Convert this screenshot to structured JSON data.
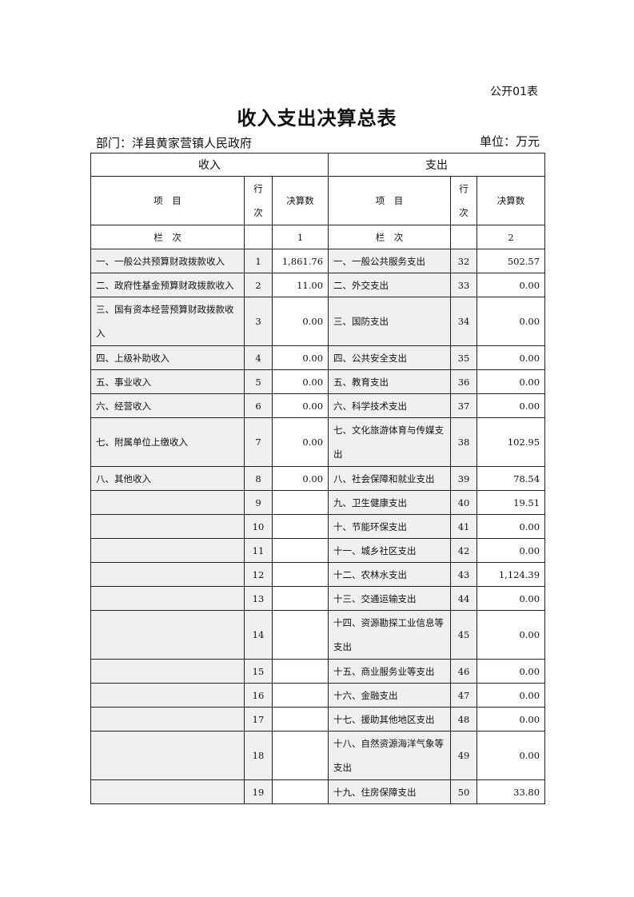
{
  "form_code": "公开01表",
  "title": "收入支出决算总表",
  "department": "部门：洋县黄家营镇人民政府",
  "unit": "单位：万元",
  "sections": {
    "income": "收入",
    "expense": "支出"
  },
  "headers": {
    "item": "项　目",
    "line": "行次",
    "amount": "决算数",
    "column_label": "栏　次",
    "income_col": "1",
    "expense_col": "2"
  },
  "rows": [
    {
      "in_item": "一、一般公共预算财政拨款收入",
      "in_line": "1",
      "in_val": "1,861.76",
      "ex_item": "一、一般公共服务支出",
      "ex_line": "32",
      "ex_val": "502.57"
    },
    {
      "in_item": "二、政府性基金预算财政拨款收入",
      "in_line": "2",
      "in_val": "11.00",
      "ex_item": "二、外交支出",
      "ex_line": "33",
      "ex_val": "0.00"
    },
    {
      "in_item": "三、国有资本经营预算财政拨款收入",
      "in_line": "3",
      "in_val": "0.00",
      "ex_item": "三、国防支出",
      "ex_line": "34",
      "ex_val": "0.00"
    },
    {
      "in_item": "四、上级补助收入",
      "in_line": "4",
      "in_val": "0.00",
      "ex_item": "四、公共安全支出",
      "ex_line": "35",
      "ex_val": "0.00"
    },
    {
      "in_item": "五、事业收入",
      "in_line": "5",
      "in_val": "0.00",
      "ex_item": "五、教育支出",
      "ex_line": "36",
      "ex_val": "0.00"
    },
    {
      "in_item": "六、经营收入",
      "in_line": "6",
      "in_val": "0.00",
      "ex_item": "六、科学技术支出",
      "ex_line": "37",
      "ex_val": "0.00"
    },
    {
      "in_item": "七、附属单位上缴收入",
      "in_line": "7",
      "in_val": "0.00",
      "ex_item": "七、文化旅游体育与传媒支出",
      "ex_line": "38",
      "ex_val": "102.95"
    },
    {
      "in_item": "八、其他收入",
      "in_line": "8",
      "in_val": "0.00",
      "ex_item": "八、社会保障和就业支出",
      "ex_line": "39",
      "ex_val": "78.54"
    },
    {
      "in_item": "",
      "in_line": "9",
      "in_val": "",
      "ex_item": "九、卫生健康支出",
      "ex_line": "40",
      "ex_val": "19.51"
    },
    {
      "in_item": "",
      "in_line": "10",
      "in_val": "",
      "ex_item": "十、节能环保支出",
      "ex_line": "41",
      "ex_val": "0.00"
    },
    {
      "in_item": "",
      "in_line": "11",
      "in_val": "",
      "ex_item": "十一、城乡社区支出",
      "ex_line": "42",
      "ex_val": "0.00"
    },
    {
      "in_item": "",
      "in_line": "12",
      "in_val": "",
      "ex_item": "十二、农林水支出",
      "ex_line": "43",
      "ex_val": "1,124.39"
    },
    {
      "in_item": "",
      "in_line": "13",
      "in_val": "",
      "ex_item": "十三、交通运输支出",
      "ex_line": "44",
      "ex_val": "0.00"
    },
    {
      "in_item": "",
      "in_line": "14",
      "in_val": "",
      "ex_item": "十四、资源勘探工业信息等支出",
      "ex_line": "45",
      "ex_val": "0.00"
    },
    {
      "in_item": "",
      "in_line": "15",
      "in_val": "",
      "ex_item": "十五、商业服务业等支出",
      "ex_line": "46",
      "ex_val": "0.00"
    },
    {
      "in_item": "",
      "in_line": "16",
      "in_val": "",
      "ex_item": "十六、金融支出",
      "ex_line": "47",
      "ex_val": "0.00"
    },
    {
      "in_item": "",
      "in_line": "17",
      "in_val": "",
      "ex_item": "十七、援助其他地区支出",
      "ex_line": "48",
      "ex_val": "0.00"
    },
    {
      "in_item": "",
      "in_line": "18",
      "in_val": "",
      "ex_item": "十八、自然资源海洋气象等支出",
      "ex_line": "49",
      "ex_val": "0.00"
    },
    {
      "in_item": "",
      "in_line": "19",
      "in_val": "",
      "ex_item": "十九、住房保障支出",
      "ex_line": "50",
      "ex_val": "33.80"
    }
  ]
}
